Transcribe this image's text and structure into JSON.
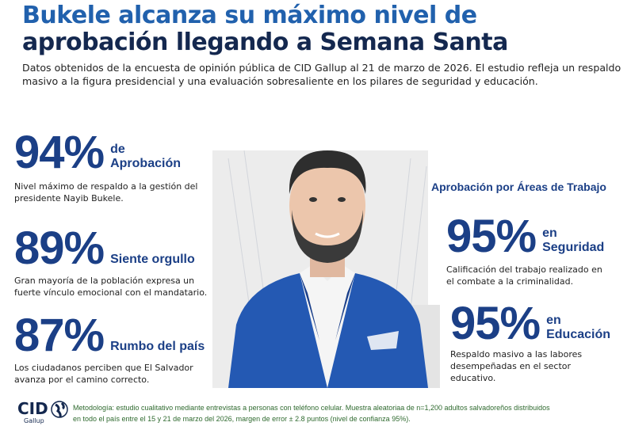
{
  "header": {
    "title_line1": "Bukele alcanza su máximo nivel de",
    "title_line2": "aprobación llegando a Semana Santa",
    "subtitle": "Datos obtenidos de la encuesta de opinión pública de CID Gallup al 21 de marzo de 2026. El estudio refleja un respaldo masivo a la figura presidencial y una evaluación sobresaliente en los pilares de seguridad y educación."
  },
  "left_stats": [
    {
      "value": "94%",
      "label_a": "de",
      "label_b": "Aprobación",
      "description": "Nivel máximo de respaldo a la gestión del presidente Nayib Bukele."
    },
    {
      "value": "89%",
      "label": "Siente orgullo",
      "description": "Gran mayoría de la población expresa un fuerte vínculo emocional con el mandatario."
    },
    {
      "value": "87%",
      "label": "Rumbo del país",
      "description": "Los ciudadanos perciben que El Salvador avanza por el camino correcto."
    }
  ],
  "right": {
    "heading": "Aprobación por Áreas de Trabajo",
    "stats": [
      {
        "value": "95%",
        "label_a": "en",
        "label_b": "Seguridad",
        "description": "Calificación del trabajo realizado en el combate a la criminalidad."
      },
      {
        "value": "95%",
        "label_a": "en",
        "label_b": "Educación",
        "description": "Respaldo masivo a las labores desempeñadas en el sector educativo."
      }
    ]
  },
  "footer": {
    "logo_text": "CID",
    "logo_sub": "Gallup",
    "methodology": "Metodología: estudio cualitativo mediante entrevistas a personas con teléfono celular. Muestra  aleatoriaa de n=1,200 adultos salvadoreños distribuidos en todo el país entre el 15 y 21 de marzo del 2026, margen de error ± 2.8 puntos (nivel de confianza 95%)."
  },
  "colors": {
    "blue": "#2161ad",
    "navy": "#14284f",
    "stat": "#1b3f86",
    "footer_text": "#2f6a2f"
  }
}
